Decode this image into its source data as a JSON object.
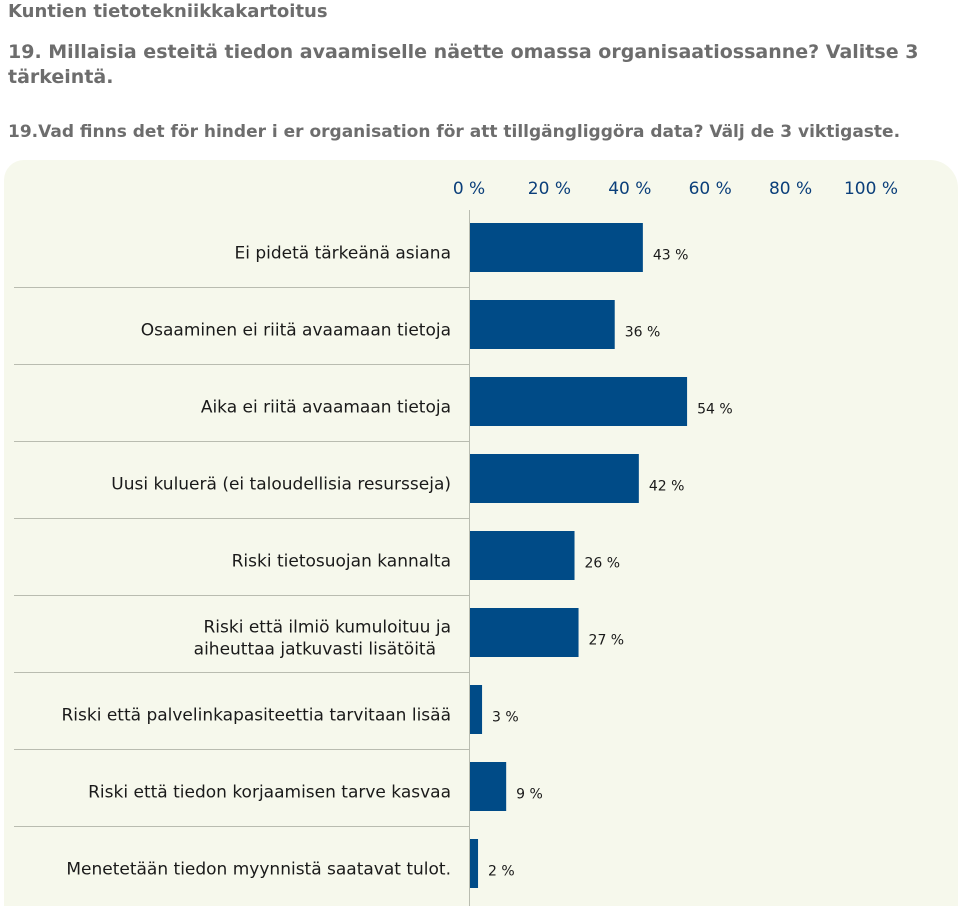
{
  "header": {
    "app_title": "Kuntien tietotekniikkakartoitus",
    "question_fi": "19. Millaisia esteitä tiedon avaamiselle näette omassa organisaatiossanne? Valitse 3 tärkeintä.",
    "question_sv": "19.Vad finns det för hinder i er organisation för att tillgängliggöra data? Välj de 3 viktigaste."
  },
  "chart_data": {
    "type": "bar",
    "orientation": "horizontal",
    "x_ticks": [
      "0 %",
      "20 %",
      "40 %",
      "60 %",
      "80 %",
      "100 %"
    ],
    "xlim": [
      0,
      100
    ],
    "axis_position": "top",
    "grid": false,
    "categories": [
      "Ei pidetä tärkeänä asiana",
      "Osaaminen ei riitä avaamaan tietoja",
      "Aika ei riitä avaamaan tietoja",
      "Uusi kuluerä (ei taloudellisia resursseja)",
      "Riski tietosuojan kannalta",
      "Riski että ilmiö kumuloituu ja aiheuttaa jatkuvasti lisätöitä",
      "Riski että palvelinkapasiteettia tarvitaan lisää",
      "Riski että tiedon korjaamisen tarve kasvaa",
      "Menetetään tiedon myynnistä saatavat tulot."
    ],
    "values": [
      43,
      36,
      54,
      42,
      26,
      27,
      3,
      9,
      2
    ],
    "value_labels": [
      "43 %",
      "36 %",
      "54 %",
      "42 %",
      "26 %",
      "27 %",
      "3 %",
      "9 %",
      "2 %"
    ],
    "bar_color": "#004b87",
    "tick_color": "#0b3f7a"
  }
}
